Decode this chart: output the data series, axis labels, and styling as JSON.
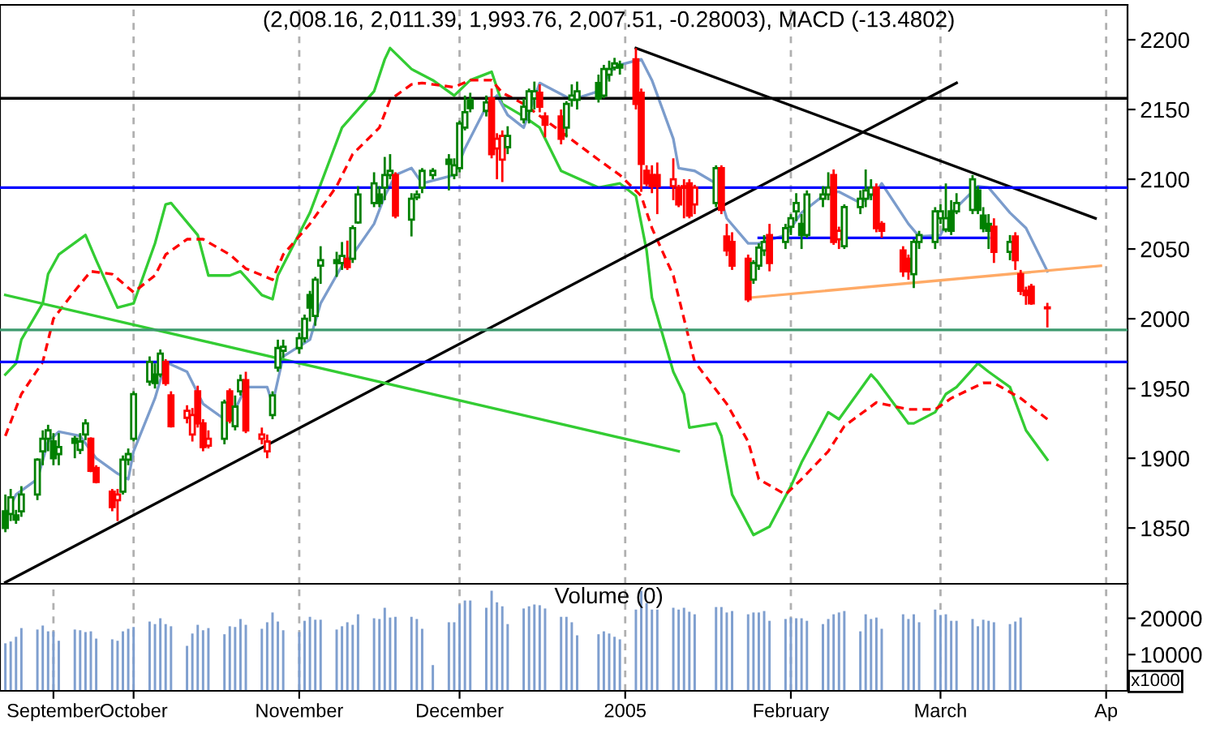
{
  "chart_data": [
    {
      "type": "candlestick",
      "title": "(2,008.16, 2,011.39, 1,993.76, 2,007.51, -0.28003), MACD (-13.4802)",
      "x": [
        "2004-09-07",
        "2004-09-08",
        "2004-09-09",
        "2004-09-10",
        "2004-09-13",
        "2004-09-14",
        "2004-09-15",
        "2004-09-16",
        "2004-09-17",
        "2004-09-20",
        "2004-09-21",
        "2004-09-22",
        "2004-09-23",
        "2004-09-24",
        "2004-09-27",
        "2004-09-28",
        "2004-09-29",
        "2004-09-30",
        "2004-10-01",
        "2004-10-04",
        "2004-10-05",
        "2004-10-06",
        "2004-10-07",
        "2004-10-08",
        "2004-10-11",
        "2004-10-12",
        "2004-10-13",
        "2004-10-14",
        "2004-10-15",
        "2004-10-18",
        "2004-10-19",
        "2004-10-20",
        "2004-10-21",
        "2004-10-22",
        "2004-10-25",
        "2004-10-26",
        "2004-10-27",
        "2004-10-28",
        "2004-10-29",
        "2004-11-01",
        "2004-11-02",
        "2004-11-03",
        "2004-11-04",
        "2004-11-05",
        "2004-11-08",
        "2004-11-09",
        "2004-11-10",
        "2004-11-11",
        "2004-11-12",
        "2004-11-15",
        "2004-11-16",
        "2004-11-17",
        "2004-11-18",
        "2004-11-19",
        "2004-11-22",
        "2004-11-23",
        "2004-11-24",
        "2004-11-26",
        "2004-11-29",
        "2004-11-30",
        "2004-12-01",
        "2004-12-02",
        "2004-12-03",
        "2004-12-06",
        "2004-12-07",
        "2004-12-08",
        "2004-12-09",
        "2004-12-10",
        "2004-12-13",
        "2004-12-14",
        "2004-12-15",
        "2004-12-16",
        "2004-12-17",
        "2004-12-20",
        "2004-12-21",
        "2004-12-22",
        "2004-12-23",
        "2004-12-27",
        "2004-12-28",
        "2004-12-29",
        "2004-12-30",
        "2004-12-31",
        "2005-01-03",
        "2005-01-04",
        "2005-01-05",
        "2005-01-06",
        "2005-01-07",
        "2005-01-10",
        "2005-01-11",
        "2005-01-12",
        "2005-01-13",
        "2005-01-14",
        "2005-01-18",
        "2005-01-19",
        "2005-01-20",
        "2005-01-21",
        "2005-01-24",
        "2005-01-25",
        "2005-01-26",
        "2005-01-27",
        "2005-01-28",
        "2005-01-31",
        "2005-02-01",
        "2005-02-02",
        "2005-02-03",
        "2005-02-04",
        "2005-02-07",
        "2005-02-08",
        "2005-02-09",
        "2005-02-10",
        "2005-02-11",
        "2005-02-14",
        "2005-02-15",
        "2005-02-16",
        "2005-02-17",
        "2005-02-18",
        "2005-02-22",
        "2005-02-23",
        "2005-02-24",
        "2005-02-25",
        "2005-02-28",
        "2005-03-01",
        "2005-03-02",
        "2005-03-03",
        "2005-03-04",
        "2005-03-07",
        "2005-03-08",
        "2005-03-09",
        "2005-03-10",
        "2005-03-11",
        "2005-03-14",
        "2005-03-15",
        "2005-03-16",
        "2005-03-17",
        "2005-03-18",
        "2005-03-21"
      ],
      "ohlc": [
        [
          1862,
          1874,
          1847,
          1850
        ],
        [
          1860,
          1878,
          1855,
          1872
        ],
        [
          1859,
          1863,
          1853,
          1856
        ],
        [
          1862,
          1880,
          1858,
          1874
        ],
        [
          1874,
          1900,
          1870,
          1899
        ],
        [
          1905,
          1920,
          1895,
          1914
        ],
        [
          1914,
          1924,
          1905,
          1920
        ],
        [
          1912,
          1918,
          1895,
          1900
        ],
        [
          1903,
          1918,
          1895,
          1908
        ],
        [
          1914,
          1916,
          1900,
          1911
        ],
        [
          1906,
          1918,
          1903,
          1912
        ],
        [
          1917,
          1928,
          1913,
          1925
        ],
        [
          1914,
          1915,
          1890,
          1891
        ],
        [
          1893,
          1895,
          1882,
          1883
        ],
        [
          1876,
          1878,
          1862,
          1865
        ],
        [
          1870,
          1878,
          1855,
          1874
        ],
        [
          1876,
          1902,
          1874,
          1899
        ],
        [
          1899,
          1907,
          1895,
          1903
        ],
        [
          1914,
          1948,
          1912,
          1946
        ],
        [
          1955,
          1973,
          1952,
          1969
        ],
        [
          1960,
          1968,
          1950,
          1954
        ],
        [
          1960,
          1978,
          1958,
          1975
        ],
        [
          1969,
          1971,
          1952,
          1954
        ],
        [
          1945,
          1948,
          1922,
          1923
        ],
        [
          1929,
          1938,
          1925,
          1934
        ],
        [
          1917,
          1936,
          1912,
          1931
        ],
        [
          1948,
          1952,
          1922,
          1925
        ],
        [
          1925,
          1928,
          1905,
          1908
        ],
        [
          1909,
          1920,
          1907,
          1914
        ],
        [
          1914,
          1942,
          1910,
          1940
        ],
        [
          1948,
          1950,
          1925,
          1927
        ],
        [
          1923,
          1945,
          1920,
          1937
        ],
        [
          1948,
          1960,
          1945,
          1956
        ],
        [
          1956,
          1962,
          1918,
          1920
        ],
        [
          1914,
          1922,
          1910,
          1917
        ],
        [
          1905,
          1917,
          1900,
          1912
        ],
        [
          1931,
          1948,
          1928,
          1945
        ],
        [
          1965,
          1985,
          1962,
          1979
        ],
        [
          1977,
          1985,
          1972,
          1980
        ],
        [
          1979,
          1990,
          1975,
          1986
        ],
        [
          1986,
          2003,
          1983,
          2000
        ],
        [
          2017,
          2020,
          1998,
          2008
        ],
        [
          2002,
          2030,
          1995,
          2028
        ],
        [
          2038,
          2052,
          2025,
          2042
        ],
        [
          2042,
          2048,
          2030,
          2040
        ],
        [
          2040,
          2055,
          2035,
          2045
        ],
        [
          2043,
          2056,
          2035,
          2037
        ],
        [
          2043,
          2067,
          2040,
          2065
        ],
        [
          2069,
          2095,
          2068,
          2089
        ],
        [
          2083,
          2105,
          2080,
          2097
        ],
        [
          2089,
          2095,
          2080,
          2083
        ],
        [
          2094,
          2116,
          2085,
          2103
        ],
        [
          2103,
          2118,
          2100,
          2106
        ],
        [
          2103,
          2105,
          2072,
          2074
        ],
        [
          2071,
          2090,
          2059,
          2086
        ],
        [
          2087,
          2092,
          2085,
          2089
        ],
        [
          2094,
          2108,
          2090,
          2106
        ],
        [
          2103,
          2108,
          2100,
          2106
        ],
        [
          2114,
          2118,
          2092,
          2111
        ],
        [
          2103,
          2115,
          2100,
          2110
        ],
        [
          2108,
          2142,
          2105,
          2140
        ],
        [
          2137,
          2160,
          2135,
          2148
        ],
        [
          2157,
          2162,
          2148,
          2151
        ],
        [
          2149,
          2160,
          2145,
          2155
        ],
        [
          2158,
          2165,
          2115,
          2118
        ],
        [
          2122,
          2133,
          2100,
          2129
        ],
        [
          2114,
          2135,
          2098,
          2131
        ],
        [
          2123,
          2138,
          2118,
          2131
        ],
        [
          2143,
          2158,
          2140,
          2152
        ],
        [
          2149,
          2165,
          2140,
          2163
        ],
        [
          2158,
          2170,
          2150,
          2163
        ],
        [
          2162,
          2168,
          2148,
          2152
        ],
        [
          2145,
          2148,
          2130,
          2139
        ],
        [
          2145,
          2150,
          2125,
          2129
        ],
        [
          2137,
          2156,
          2130,
          2154
        ],
        [
          2157,
          2168,
          2152,
          2160
        ],
        [
          2157,
          2170,
          2150,
          2163
        ],
        [
          2169,
          2175,
          2155,
          2158
        ],
        [
          2160,
          2182,
          2158,
          2179
        ],
        [
          2175,
          2185,
          2170,
          2179
        ],
        [
          2180,
          2187,
          2178,
          2183
        ],
        [
          2182,
          2185,
          2175,
          2180
        ],
        [
          2186,
          2194,
          2150,
          2154
        ],
        [
          2162,
          2165,
          2091,
          2111
        ],
        [
          2106,
          2110,
          2095,
          2097
        ],
        [
          2103,
          2110,
          2090,
          2095
        ],
        [
          2103,
          2112,
          2075,
          2095
        ],
        [
          2095,
          2115,
          2085,
          2100
        ],
        [
          2094,
          2096,
          2080,
          2082
        ],
        [
          2094,
          2100,
          2072,
          2095
        ],
        [
          2097,
          2100,
          2072,
          2074
        ],
        [
          2082,
          2096,
          2075,
          2094
        ],
        [
          2083,
          2110,
          2080,
          2108
        ],
        [
          2108,
          2110,
          2075,
          2078
        ],
        [
          2059,
          2068,
          2045,
          2049
        ],
        [
          2055,
          2062,
          2035,
          2038
        ],
        [
          2043,
          2046,
          2012,
          2014
        ],
        [
          2028,
          2042,
          2025,
          2040
        ],
        [
          2038,
          2054,
          2035,
          2051
        ],
        [
          2049,
          2060,
          2045,
          2055
        ],
        [
          2060,
          2068,
          2034,
          2040
        ],
        [
          2055,
          2068,
          2050,
          2065
        ],
        [
          2066,
          2075,
          2060,
          2072
        ],
        [
          2077,
          2090,
          2070,
          2083
        ],
        [
          2068,
          2075,
          2050,
          2060
        ],
        [
          2060,
          2092,
          2058,
          2089
        ],
        [
          2086,
          2095,
          2080,
          2089
        ],
        [
          2089,
          2105,
          2085,
          2094
        ],
        [
          2103,
          2107,
          2053,
          2055
        ],
        [
          2057,
          2066,
          2050,
          2063
        ],
        [
          2052,
          2082,
          2050,
          2080
        ],
        [
          2080,
          2092,
          2075,
          2086
        ],
        [
          2086,
          2107,
          2080,
          2092
        ],
        [
          2089,
          2100,
          2085,
          2094
        ],
        [
          2094,
          2097,
          2062,
          2065
        ],
        [
          2068,
          2070,
          2058,
          2063
        ],
        [
          2049,
          2052,
          2030,
          2034
        ],
        [
          2043,
          2046,
          2028,
          2034
        ],
        [
          2032,
          2057,
          2022,
          2055
        ],
        [
          2055,
          2063,
          2050,
          2060
        ],
        [
          2055,
          2080,
          2050,
          2077
        ],
        [
          2072,
          2082,
          2068,
          2077
        ],
        [
          2064,
          2097,
          2062,
          2072
        ],
        [
          2077,
          2085,
          2060,
          2063
        ],
        [
          2077,
          2090,
          2075,
          2083
        ],
        [
          2078,
          2103,
          2075,
          2100
        ],
        [
          2092,
          2095,
          2075,
          2078
        ],
        [
          2074,
          2080,
          2062,
          2065
        ],
        [
          2068,
          2075,
          2050,
          2063
        ],
        [
          2066,
          2072,
          2040,
          2048
        ],
        [
          2048,
          2060,
          2042,
          2055
        ],
        [
          2059,
          2062,
          2035,
          2042
        ],
        [
          2032,
          2035,
          2017,
          2020
        ],
        [
          2020,
          2023,
          2010,
          2017
        ],
        [
          2023,
          2025,
          2010,
          2011
        ],
        [
          2008.16,
          2011.39,
          1993.76,
          2007.51
        ]
      ],
      "colors": [
        "#008000",
        "#008000",
        "#008000",
        "#008000",
        "#008000",
        "#008000",
        "#008000",
        "#008000",
        "#008000",
        "#008000",
        "#008000",
        "#008000",
        "#ff0000",
        "#ff0000",
        "#ff0000",
        "#ff0000",
        "#008000",
        "#008000",
        "#008000",
        "#008000",
        "#008000",
        "#008000",
        "#ff0000",
        "#ff0000",
        "#ff0000",
        "#ff0000",
        "#ff0000",
        "#ff0000",
        "#ff0000",
        "#008000",
        "#ff0000",
        "#008000",
        "#008000",
        "#ff0000",
        "#ff0000",
        "#ff0000",
        "#008000",
        "#008000",
        "#008000",
        "#008000",
        "#008000",
        "#008000",
        "#008000",
        "#008000",
        "#008000",
        "#008000",
        "#ff0000",
        "#008000",
        "#008000",
        "#008000",
        "#008000",
        "#008000",
        "#008000",
        "#ff0000",
        "#008000",
        "#008000",
        "#008000",
        "#008000",
        "#008000",
        "#008000",
        "#008000",
        "#008000",
        "#008000",
        "#008000",
        "#ff0000",
        "#ff0000",
        "#ff0000",
        "#008000",
        "#008000",
        "#008000",
        "#008000",
        "#ff0000",
        "#ff0000",
        "#ff0000",
        "#008000",
        "#008000",
        "#008000",
        "#008000",
        "#008000",
        "#008000",
        "#008000",
        "#008000",
        "#ff0000",
        "#ff0000",
        "#ff0000",
        "#ff0000",
        "#ff0000",
        "#ff0000",
        "#ff0000",
        "#ff0000",
        "#ff0000",
        "#ff0000",
        "#008000",
        "#ff0000",
        "#ff0000",
        "#ff0000",
        "#ff0000",
        "#008000",
        "#008000",
        "#008000",
        "#ff0000",
        "#008000",
        "#008000",
        "#008000",
        "#008000",
        "#008000",
        "#008000",
        "#008000",
        "#ff0000",
        "#ff0000",
        "#008000",
        "#008000",
        "#008000",
        "#008000",
        "#ff0000",
        "#ff0000",
        "#ff0000",
        "#ff0000",
        "#008000",
        "#008000",
        "#008000",
        "#008000",
        "#008000",
        "#008000",
        "#008000",
        "#008000",
        "#008000",
        "#008000",
        "#008000",
        "#ff0000",
        "#008000",
        "#ff0000",
        "#ff0000",
        "#ff0000",
        "#ff0000",
        "#ff0000"
      ],
      "series": [
        {
          "type": "line",
          "color": "#33cc33",
          "line_style": "solid",
          "x": [
            "2004-09-07",
            "2004-09-09",
            "2004-09-10",
            "2004-09-14",
            "2004-09-15",
            "2004-09-17",
            "2004-09-22",
            "2004-09-24",
            "2004-09-28",
            "2004-10-01",
            "2004-10-05",
            "2004-10-07",
            "2004-10-08",
            "2004-10-13",
            "2004-10-15",
            "2004-10-19",
            "2004-10-21",
            "2004-10-25",
            "2004-10-27",
            "2004-10-28",
            "2004-11-03",
            "2004-11-09",
            "2004-11-15",
            "2004-11-17",
            "2004-11-18",
            "2004-11-22",
            "2004-11-26",
            "2004-11-30",
            "2004-12-03",
            "2004-12-07",
            "2004-12-09",
            "2004-12-13",
            "2004-12-16",
            "2004-12-20",
            "2004-12-27",
            "2004-12-31",
            "2005-01-03",
            "2005-01-05",
            "2005-01-06",
            "2005-01-10",
            "2005-01-12",
            "2005-01-13",
            "2005-01-18",
            "2005-01-19",
            "2005-01-21",
            "2005-01-25",
            "2005-01-28",
            "2005-02-01",
            "2005-02-03",
            "2005-02-08",
            "2005-02-10",
            "2005-02-16",
            "2005-02-17",
            "2005-02-23",
            "2005-02-24",
            "2005-02-28",
            "2005-03-02",
            "2005-03-04",
            "2005-03-08",
            "2005-03-10",
            "2005-03-14",
            "2005-03-17",
            "2005-03-21"
          ],
          "values": [
            1960,
            1968,
            1985,
            2011,
            2032,
            2046,
            2060,
            2042,
            2008,
            2011,
            2054,
            2082,
            2083,
            2060,
            2031,
            2031,
            2034,
            2017,
            2014,
            2031,
            2076,
            2137,
            2163,
            2186,
            2194,
            2179,
            2171,
            2160,
            2171,
            2177,
            2154,
            2145,
            2137,
            2106,
            2094,
            2097,
            2088,
            2049,
            2015,
            1962,
            1946,
            1922,
            1925,
            1916,
            1874,
            1845,
            1851,
            1880,
            1897,
            1933,
            1928,
            1960,
            1956,
            1925,
            1925,
            1933,
            1946,
            1951,
            1968,
            1962,
            1951,
            1920,
            1899
          ]
        },
        {
          "type": "line",
          "color": "#ff0000",
          "line_style": "dashed",
          "x": [
            "2004-09-07",
            "2004-09-10",
            "2004-09-14",
            "2004-09-16",
            "2004-09-20",
            "2004-09-23",
            "2004-09-27",
            "2004-10-01",
            "2004-10-05",
            "2004-10-07",
            "2004-10-11",
            "2004-10-14",
            "2004-10-19",
            "2004-10-22",
            "2004-10-27",
            "2004-10-29",
            "2004-11-03",
            "2004-11-08",
            "2004-11-11",
            "2004-11-16",
            "2004-11-18",
            "2004-11-22",
            "2004-11-24",
            "2004-11-30",
            "2004-12-03",
            "2004-12-07",
            "2004-12-09",
            "2004-12-13",
            "2004-12-20",
            "2004-12-27",
            "2004-12-31",
            "2005-01-04",
            "2005-01-06",
            "2005-01-10",
            "2005-01-12",
            "2005-01-14",
            "2005-01-20",
            "2005-01-24",
            "2005-01-26",
            "2005-01-31",
            "2005-02-03",
            "2005-02-08",
            "2005-02-11",
            "2005-02-17",
            "2005-02-23",
            "2005-02-28",
            "2005-03-03",
            "2005-03-09",
            "2005-03-11",
            "2005-03-16",
            "2005-03-21"
          ],
          "values": [
            1916,
            1946,
            1969,
            2000,
            2020,
            2034,
            2032,
            2019,
            2031,
            2046,
            2057,
            2057,
            2046,
            2036,
            2028,
            2046,
            2068,
            2095,
            2118,
            2137,
            2157,
            2168,
            2169,
            2166,
            2171,
            2171,
            2162,
            2154,
            2134,
            2114,
            2103,
            2088,
            2065,
            2031,
            2000,
            1969,
            1939,
            1912,
            1885,
            1874,
            1885,
            1905,
            1923,
            1940,
            1935,
            1935,
            1943,
            1954,
            1954,
            1943,
            1928
          ]
        },
        {
          "type": "line",
          "color": "#7b9ccc",
          "line_style": "solid",
          "x": [
            "2004-09-07",
            "2004-09-09",
            "2004-09-13",
            "2004-09-15",
            "2004-09-17",
            "2004-09-21",
            "2004-09-24",
            "2004-09-28",
            "2004-09-30",
            "2004-10-01",
            "2004-10-05",
            "2004-10-07",
            "2004-10-11",
            "2004-10-14",
            "2004-10-18",
            "2004-10-20",
            "2004-10-22",
            "2004-10-26",
            "2004-10-27",
            "2004-10-29",
            "2004-11-03",
            "2004-11-05",
            "2004-11-09",
            "2004-11-11",
            "2004-11-15",
            "2004-11-17",
            "2004-11-19",
            "2004-11-22",
            "2004-11-24",
            "2004-11-30",
            "2004-12-02",
            "2004-12-06",
            "2004-12-08",
            "2004-12-10",
            "2004-12-13",
            "2004-12-16",
            "2004-12-22",
            "2004-12-27",
            "2004-12-30",
            "2005-01-04",
            "2005-01-06",
            "2005-01-10",
            "2005-01-11",
            "2005-01-14",
            "2005-01-18",
            "2005-01-20",
            "2005-01-24",
            "2005-01-26",
            "2005-01-31",
            "2005-02-01",
            "2005-02-03",
            "2005-02-08",
            "2005-02-10",
            "2005-02-14",
            "2005-02-17",
            "2005-02-18",
            "2005-02-23",
            "2005-02-25",
            "2005-03-01",
            "2005-03-03",
            "2005-03-08",
            "2005-03-10",
            "2005-03-14",
            "2005-03-17",
            "2005-03-21"
          ],
          "values": [
            1859,
            1874,
            1885,
            1912,
            1919,
            1916,
            1900,
            1889,
            1885,
            1905,
            1943,
            1969,
            1962,
            1939,
            1928,
            1935,
            1951,
            1951,
            1939,
            1973,
            1985,
            2011,
            2038,
            2046,
            2068,
            2088,
            2103,
            2108,
            2097,
            2103,
            2122,
            2152,
            2160,
            2146,
            2137,
            2169,
            2157,
            2163,
            2181,
            2186,
            2171,
            2129,
            2108,
            2106,
            2097,
            2072,
            2054,
            2054,
            2060,
            2065,
            2076,
            2091,
            2091,
            2083,
            2091,
            2097,
            2068,
            2059,
            2060,
            2076,
            2095,
            2094,
            2076,
            2065,
            2034
          ]
        },
        {
          "type": "line",
          "color": "#000000",
          "line_style": "solid",
          "x": [
            "2004-09-07",
            "2005-03-04"
          ],
          "values": [
            1811,
            2169
          ]
        },
        {
          "type": "line",
          "color": "#000000",
          "line_style": "solid",
          "x": [
            "2005-01-03",
            "2005-03-30"
          ],
          "values": [
            2194,
            2072
          ]
        },
        {
          "type": "line",
          "color": "#33cc33",
          "line_style": "solid",
          "x": [
            "2004-09-07",
            "2005-01-11"
          ],
          "values": [
            2017,
            1905
          ]
        },
        {
          "type": "line",
          "color": "#ffaa66",
          "line_style": "solid",
          "x": [
            "2005-01-24",
            "2005-03-31"
          ],
          "values": [
            2015,
            2038
          ]
        },
        {
          "type": "line",
          "color": "#0000ff",
          "line_style": "solid",
          "x": [
            "2005-01-26",
            "2005-03-10"
          ],
          "values": [
            2058,
            2058
          ]
        }
      ],
      "ref_lines": [
        {
          "axis": "y",
          "value": 2158,
          "color": "#000000"
        },
        {
          "axis": "y",
          "value": 2094,
          "color": "#0000ff"
        },
        {
          "axis": "y",
          "value": 1992,
          "color": "#3c9a6e"
        },
        {
          "axis": "y",
          "value": 1969,
          "color": "#0000ff"
        }
      ],
      "xlim": [
        "2004-09-06",
        "2005-04-05"
      ],
      "xticks": [
        {
          "value": "2004-10-01",
          "label": null
        },
        {
          "value": "2004-11-01",
          "label": null
        },
        {
          "value": "2004-12-01",
          "label": null
        },
        {
          "value": "2005-01-01",
          "label": null
        },
        {
          "value": "2005-02-01",
          "label": null
        },
        {
          "value": "2005-03-01",
          "label": null
        },
        {
          "value": "2005-04-01",
          "label": null
        }
      ],
      "ylim": [
        1810,
        2225
      ],
      "yticks": [
        1850,
        1900,
        1950,
        2000,
        2050,
        2100,
        2150,
        2200
      ],
      "tick_labels": "y",
      "grid": "x"
    },
    {
      "type": "bar",
      "title": "Volume (0)",
      "annotations": [
        "x1000"
      ],
      "x": [
        "2004-09-07",
        "2004-09-08",
        "2004-09-09",
        "2004-09-10",
        "2004-09-13",
        "2004-09-14",
        "2004-09-15",
        "2004-09-16",
        "2004-09-17",
        "2004-09-20",
        "2004-09-21",
        "2004-09-22",
        "2004-09-23",
        "2004-09-24",
        "2004-09-27",
        "2004-09-28",
        "2004-09-29",
        "2004-09-30",
        "2004-10-01",
        "2004-10-04",
        "2004-10-05",
        "2004-10-06",
        "2004-10-07",
        "2004-10-08",
        "2004-10-11",
        "2004-10-12",
        "2004-10-13",
        "2004-10-14",
        "2004-10-15",
        "2004-10-18",
        "2004-10-19",
        "2004-10-20",
        "2004-10-21",
        "2004-10-22",
        "2004-10-25",
        "2004-10-26",
        "2004-10-27",
        "2004-10-28",
        "2004-10-29",
        "2004-11-01",
        "2004-11-02",
        "2004-11-03",
        "2004-11-04",
        "2004-11-05",
        "2004-11-08",
        "2004-11-09",
        "2004-11-10",
        "2004-11-11",
        "2004-11-12",
        "2004-11-15",
        "2004-11-16",
        "2004-11-17",
        "2004-11-18",
        "2004-11-19",
        "2004-11-22",
        "2004-11-23",
        "2004-11-24",
        "2004-11-26",
        "2004-11-29",
        "2004-11-30",
        "2004-12-01",
        "2004-12-02",
        "2004-12-03",
        "2004-12-06",
        "2004-12-07",
        "2004-12-08",
        "2004-12-09",
        "2004-12-10",
        "2004-12-13",
        "2004-12-14",
        "2004-12-15",
        "2004-12-16",
        "2004-12-17",
        "2004-12-20",
        "2004-12-21",
        "2004-12-22",
        "2004-12-23",
        "2004-12-27",
        "2004-12-28",
        "2004-12-29",
        "2004-12-30",
        "2004-12-31",
        "2005-01-03",
        "2005-01-04",
        "2005-01-05",
        "2005-01-06",
        "2005-01-07",
        "2005-01-10",
        "2005-01-11",
        "2005-01-12",
        "2005-01-13",
        "2005-01-14",
        "2005-01-18",
        "2005-01-19",
        "2005-01-20",
        "2005-01-21",
        "2005-01-24",
        "2005-01-25",
        "2005-01-26",
        "2005-01-27",
        "2005-01-28",
        "2005-01-31",
        "2005-02-01",
        "2005-02-02",
        "2005-02-03",
        "2005-02-04",
        "2005-02-07",
        "2005-02-08",
        "2005-02-09",
        "2005-02-10",
        "2005-02-11",
        "2005-02-14",
        "2005-02-15",
        "2005-02-16",
        "2005-02-17",
        "2005-02-18",
        "2005-02-22",
        "2005-02-23",
        "2005-02-24",
        "2005-02-25",
        "2005-02-28",
        "2005-03-01",
        "2005-03-02",
        "2005-03-03",
        "2005-03-04",
        "2005-03-07",
        "2005-03-08",
        "2005-03-09",
        "2005-03-10",
        "2005-03-11",
        "2005-03-14",
        "2005-03-15",
        "2005-03-16"
      ],
      "series": [
        {
          "color": "#7f9fcf",
          "values": [
            13100,
            13600,
            14900,
            17300,
            16900,
            18000,
            16400,
            16400,
            13800,
            16900,
            16700,
            16200,
            16400,
            14400,
            14200,
            13800,
            16400,
            17100,
            17600,
            19100,
            18400,
            20000,
            18400,
            17800,
            12400,
            15800,
            18200,
            16700,
            17300,
            15600,
            17800,
            17600,
            19800,
            18200,
            17100,
            18900,
            21600,
            19100,
            16700,
            16200,
            19300,
            20400,
            19600,
            19600,
            16900,
            17800,
            18900,
            18200,
            21100,
            20000,
            19800,
            22900,
            20200,
            20400,
            20400,
            19800,
            17100,
            7100,
            18900,
            18900,
            23800,
            24900,
            24900,
            22900,
            27600,
            24400,
            23300,
            18400,
            22700,
            23300,
            23800,
            23600,
            22700,
            20400,
            20400,
            18900,
            15300,
            15600,
            16400,
            15800,
            14900,
            14200,
            22400,
            27600,
            24200,
            22400,
            22400,
            22900,
            22400,
            22900,
            21800,
            21100,
            23100,
            23100,
            21600,
            22000,
            21100,
            21600,
            21600,
            22000,
            19300,
            19800,
            20200,
            20000,
            20000,
            19300,
            18400,
            19800,
            21100,
            21600,
            22000,
            16400,
            21100,
            19800,
            20200,
            17100,
            21100,
            19800,
            21100,
            18900,
            22400,
            20900,
            21100,
            19300,
            19300,
            19800,
            17800,
            19600,
            19300,
            18900,
            18400,
            19100,
            20200
          ]
        }
      ],
      "xlim": [
        "2004-09-06",
        "2005-04-05"
      ],
      "xticks": [
        {
          "value": "2004-09-16",
          "label": "September"
        },
        {
          "value": "2004-10-01",
          "label": "October"
        },
        {
          "value": "2004-11-01",
          "label": "November"
        },
        {
          "value": "2004-12-01",
          "label": "December"
        },
        {
          "value": "2005-01-01",
          "label": "2005"
        },
        {
          "value": "2005-02-01",
          "label": "February"
        },
        {
          "value": "2005-03-01",
          "label": "March"
        },
        {
          "value": "2005-04-01",
          "label": "Ap"
        }
      ],
      "ylim": [
        0,
        29500
      ],
      "yticks": [
        10000,
        20000
      ],
      "grid": "x"
    }
  ]
}
